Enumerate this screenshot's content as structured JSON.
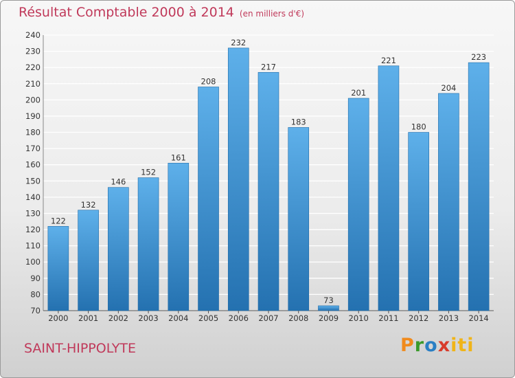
{
  "title": "Résultat Comptable 2000 à 2014",
  "subtitle": "(en milliers d'€)",
  "commune": "SAINT-HIPPOLYTE",
  "brand": {
    "letters": [
      "P",
      "r",
      "o",
      "x",
      "iti"
    ],
    "colors": [
      "#f08a1c",
      "#3a9a2b",
      "#2a7fc4",
      "#d83b2a",
      "#f0b418"
    ]
  },
  "colors": {
    "title": "#c0395a",
    "bar_light": "#5eb0ea",
    "bar_dark": "#2471b0",
    "grid": "#ffffff",
    "text": "#333333"
  },
  "chart_data": {
    "type": "bar",
    "title": "Résultat Comptable 2000 à 2014",
    "subtitle": "(en milliers d'€)",
    "xlabel": "",
    "ylabel": "",
    "categories": [
      "2000",
      "2001",
      "2002",
      "2003",
      "2004",
      "2005",
      "2006",
      "2007",
      "2008",
      "2009",
      "2010",
      "2011",
      "2012",
      "2013",
      "2014"
    ],
    "values": [
      122,
      132,
      146,
      152,
      161,
      208,
      232,
      217,
      183,
      73,
      201,
      221,
      180,
      204,
      223
    ],
    "ylim": [
      70,
      240
    ],
    "yticks": [
      70,
      80,
      90,
      100,
      110,
      120,
      130,
      140,
      150,
      160,
      170,
      180,
      190,
      200,
      210,
      220,
      230,
      240
    ],
    "grid": true,
    "legend": "none"
  }
}
